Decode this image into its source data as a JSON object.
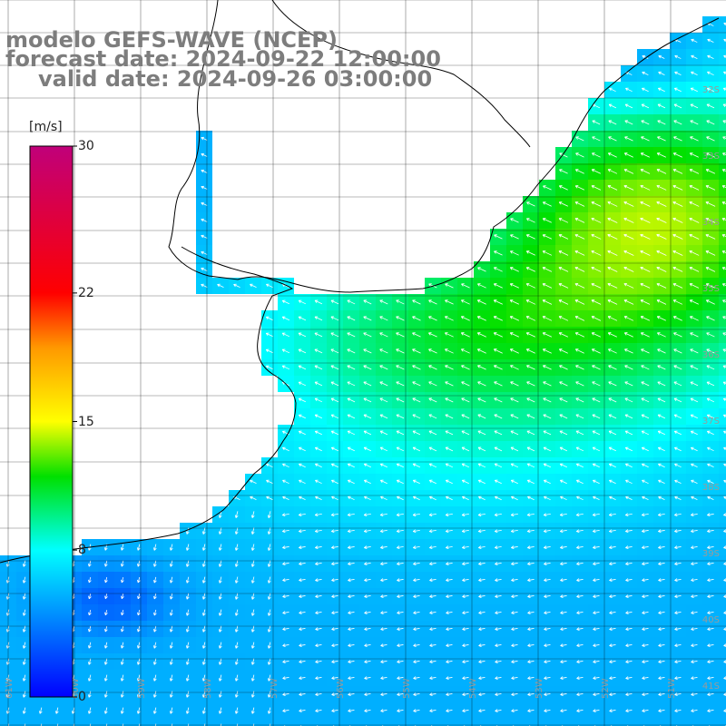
{
  "title": {
    "line1": "modelo GEFS-WAVE (NCEP)",
    "line2": "forecast date: 2024-09-22 12:00:00",
    "line3": "valid date: 2024-09-26 03:00:00"
  },
  "colorbar": {
    "unit": "[m/s]",
    "min": 0,
    "max": 30,
    "ticks": [
      {
        "label": "30",
        "value": 30
      },
      {
        "label": "22",
        "value": 22
      },
      {
        "label": "15",
        "value": 15
      },
      {
        "label": "8",
        "value": 8
      },
      {
        "label": "0",
        "value": 0
      }
    ],
    "stops": [
      {
        "value": 0,
        "color": "#0000ff"
      },
      {
        "value": 8,
        "color": "#00ffff"
      },
      {
        "value": 12,
        "color": "#00e000"
      },
      {
        "value": 15,
        "color": "#ffff00"
      },
      {
        "value": 19,
        "color": "#ff9900"
      },
      {
        "value": 22,
        "color": "#ff0000"
      },
      {
        "value": 30,
        "color": "#c0007a"
      }
    ]
  },
  "lat_labels": [
    "32S",
    "33S",
    "34S",
    "35S",
    "36S",
    "37S",
    "38S",
    "39S",
    "40S",
    "41S"
  ],
  "lon_labels": [
    "61W",
    "60W",
    "59W",
    "58W",
    "57W",
    "56W",
    "55W",
    "54W",
    "53W",
    "52W",
    "51W"
  ],
  "colors": {
    "background": "#ffffff",
    "grid": "#000000",
    "coast": "#000000",
    "label": "#7d7d7d",
    "arrow": "#ffffff"
  }
}
